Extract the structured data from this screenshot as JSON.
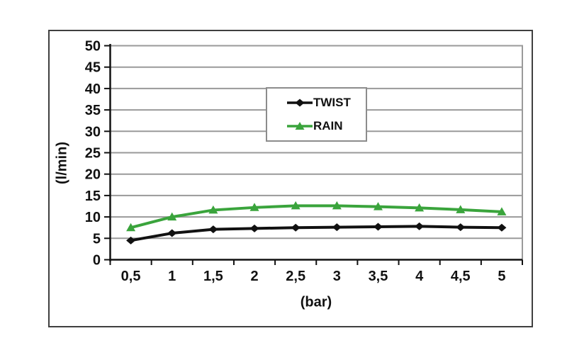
{
  "page": {
    "background": "#ffffff"
  },
  "frame": {
    "border_color": "#3f3f3f",
    "background": "#ffffff"
  },
  "chart_data": {
    "type": "line",
    "title": "",
    "xlabel": "(bar)",
    "ylabel": "(l/min)",
    "x_tick_labels": [
      "0,5",
      "1",
      "1,5",
      "2",
      "2,5",
      "3",
      "3,5",
      "4",
      "4,5",
      "5"
    ],
    "x_values": [
      0.5,
      1,
      1.5,
      2,
      2.5,
      3,
      3.5,
      4,
      4.5,
      5
    ],
    "y_ticks": [
      0,
      5,
      10,
      15,
      20,
      25,
      30,
      35,
      40,
      45,
      50
    ],
    "y_tick_labels": [
      "0",
      "5",
      "10",
      "15",
      "20",
      "25",
      "30",
      "35",
      "40",
      "45",
      "50"
    ],
    "ylim": [
      0,
      50
    ],
    "grid": "horizontal",
    "gridline_color": "#9a9a9a",
    "axis_color": "#111111",
    "legend_position": "upper-middle",
    "series": [
      {
        "name": "TWIST",
        "color": "#111111",
        "marker": "diamond",
        "values": [
          4.5,
          6.2,
          7.1,
          7.3,
          7.5,
          7.6,
          7.7,
          7.8,
          7.6,
          7.5
        ]
      },
      {
        "name": "RAIN",
        "color": "#3aa43c",
        "marker": "triangle",
        "values": [
          7.5,
          10.0,
          11.6,
          12.2,
          12.6,
          12.6,
          12.4,
          12.1,
          11.7,
          11.2
        ]
      }
    ]
  }
}
